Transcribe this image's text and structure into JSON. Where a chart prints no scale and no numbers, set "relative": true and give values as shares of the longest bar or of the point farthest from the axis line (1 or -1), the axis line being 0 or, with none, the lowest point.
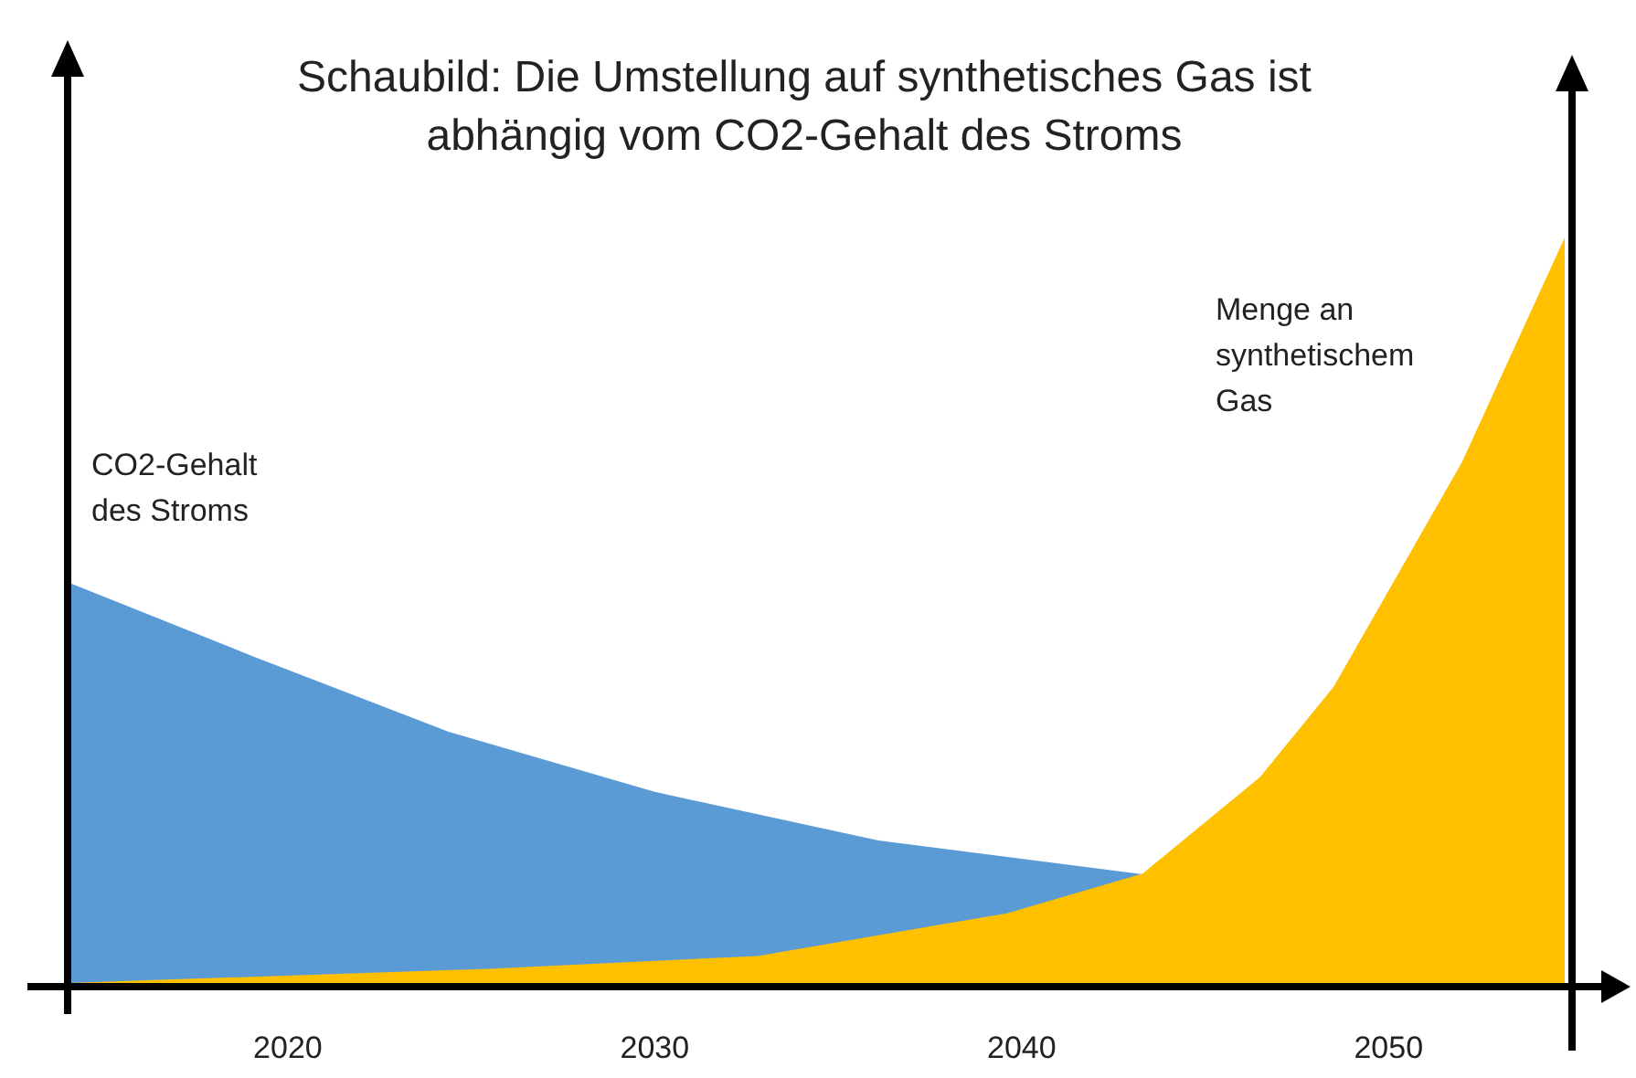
{
  "chart_data": {
    "type": "area",
    "title": "Schaubild: Die Umstellung auf synthetisches Gas ist abhängig vom CO2-Gehalt des Stroms",
    "relative": true,
    "xlim": [
      2014,
      2055
    ],
    "xticks": [
      2020,
      2030,
      2040,
      2050
    ],
    "series": [
      {
        "name": "CO2-Gehalt des Stroms",
        "color": "#5b9bd5",
        "x": [
          2014,
          2019.1,
          2024.4,
          2030,
          2036.1,
          2043.3
        ],
        "values": [
          0.54,
          0.44,
          0.34,
          0.26,
          0.195,
          0.15
        ]
      },
      {
        "name": "Menge an synthetischem Gas",
        "color": "#ffc000",
        "x": [
          2014,
          2025.6,
          2032.8,
          2039.6,
          2043.3,
          2046.5,
          2048.5,
          2052,
          2054.8
        ],
        "values": [
          0.005,
          0.024,
          0.041,
          0.098,
          0.151,
          0.28,
          0.4,
          0.7,
          1
        ]
      }
    ]
  }
}
